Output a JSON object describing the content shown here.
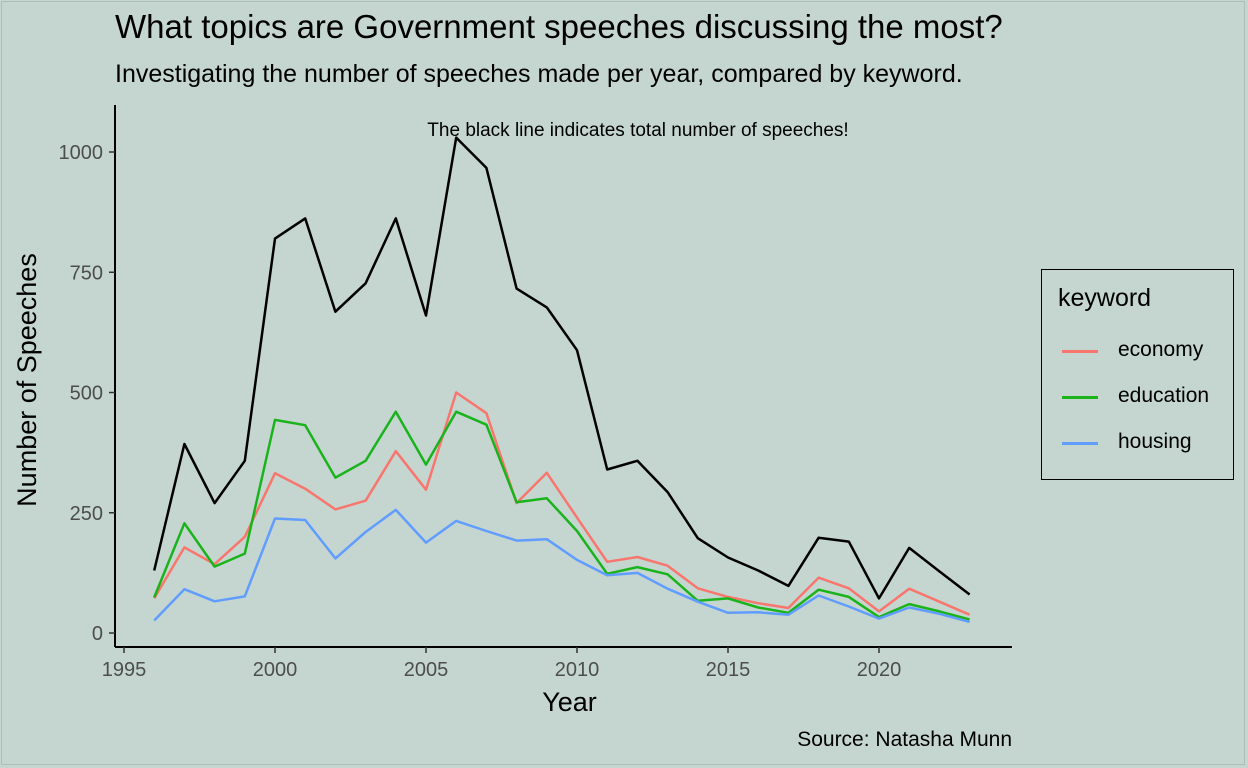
{
  "header": {
    "title": "What topics are Government speeches discussing the most?",
    "subtitle": "Investigating the number of speeches made per year, compared by keyword.",
    "caption": "Source: Natasha Munn"
  },
  "legend": {
    "title": "keyword",
    "items": [
      {
        "label": "economy",
        "color": "#f8766d"
      },
      {
        "label": "education",
        "color": "#1bb31b"
      },
      {
        "label": "housing",
        "color": "#619cff"
      }
    ]
  },
  "chart_data": {
    "type": "line",
    "title": "What topics are Government speeches discussing the most?",
    "subtitle": "Investigating the number of speeches made per year, compared by keyword.",
    "xlabel": "Year",
    "ylabel": "Number of Speeches",
    "xlim": [
      1995,
      2024
    ],
    "ylim": [
      0,
      1050
    ],
    "xticks": [
      1995,
      2000,
      2005,
      2010,
      2015,
      2020
    ],
    "yticks": [
      0,
      250,
      500,
      750,
      1000
    ],
    "annotation": "The black line indicates total number of speeches!",
    "x": [
      1996,
      1997,
      1998,
      1999,
      2000,
      2001,
      2002,
      2003,
      2004,
      2005,
      2006,
      2007,
      2008,
      2009,
      2010,
      2011,
      2012,
      2013,
      2014,
      2015,
      2016,
      2017,
      2018,
      2019,
      2020,
      2021,
      2022,
      2023
    ],
    "series": [
      {
        "name": "total",
        "color": "#000000",
        "values": [
          130,
          393,
          270,
          358,
          820,
          862,
          668,
          727,
          862,
          660,
          1030,
          967,
          716,
          677,
          588,
          340,
          358,
          293,
          197,
          157,
          130,
          98,
          198,
          190,
          72,
          177,
          128,
          80
        ]
      },
      {
        "name": "economy",
        "color": "#f8766d",
        "values": [
          72,
          178,
          143,
          200,
          332,
          300,
          257,
          275,
          378,
          298,
          500,
          457,
          270,
          333,
          240,
          148,
          158,
          140,
          93,
          75,
          62,
          52,
          115,
          93,
          45,
          92,
          65,
          38
        ]
      },
      {
        "name": "education",
        "color": "#1bb31b",
        "values": [
          74,
          228,
          138,
          165,
          443,
          432,
          323,
          358,
          460,
          350,
          460,
          433,
          272,
          280,
          212,
          123,
          137,
          122,
          67,
          72,
          53,
          42,
          90,
          75,
          33,
          60,
          45,
          28
        ]
      },
      {
        "name": "housing",
        "color": "#619cff",
        "values": [
          26,
          91,
          66,
          76,
          238,
          235,
          155,
          210,
          256,
          188,
          233,
          212,
          192,
          195,
          152,
          120,
          125,
          92,
          65,
          42,
          43,
          38,
          78,
          55,
          30,
          53,
          40,
          23
        ]
      }
    ],
    "legend": "right",
    "grid": false
  }
}
